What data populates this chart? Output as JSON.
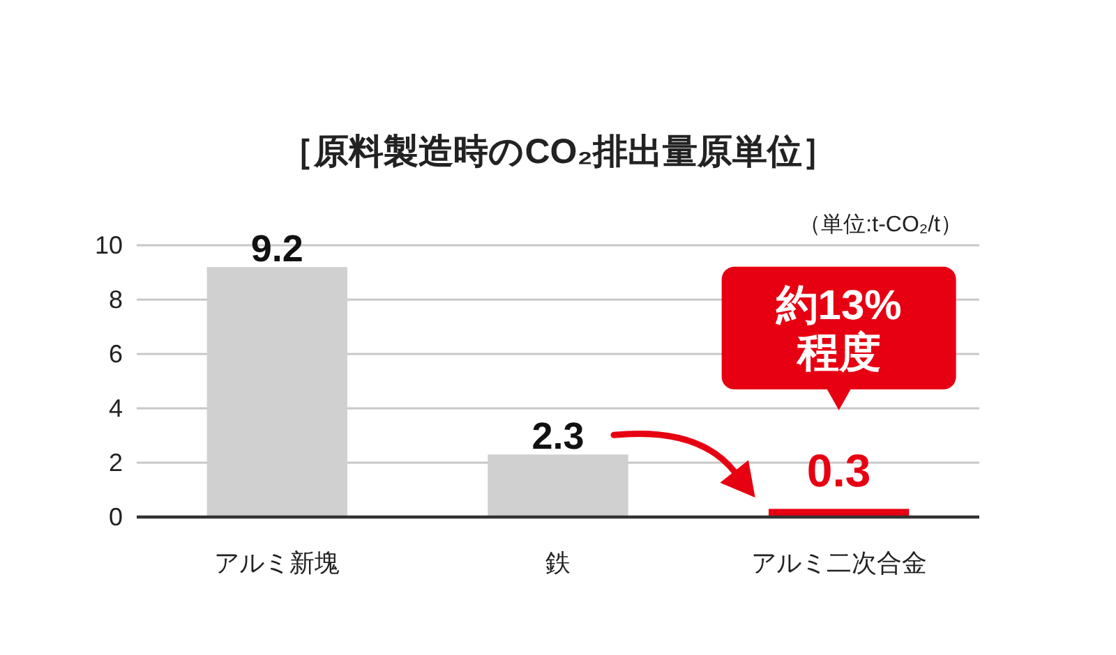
{
  "chart_data": {
    "type": "bar",
    "title": "［原料製造時のCO₂排出量原単位］",
    "categories": [
      "アルミ新塊",
      "鉄",
      "アルミ二次合金"
    ],
    "values": [
      9.2,
      2.3,
      0.3
    ],
    "colors": [
      "#d0d0d0",
      "#d0d0d0",
      "#e60012"
    ],
    "ylim": [
      0,
      10
    ],
    "yticks": [
      0,
      2,
      4,
      6,
      8,
      10
    ],
    "grid": "y",
    "data_labels": true,
    "annotations": [
      "（単位:t-CO₂/t）",
      "約13%\n程度"
    ]
  }
}
